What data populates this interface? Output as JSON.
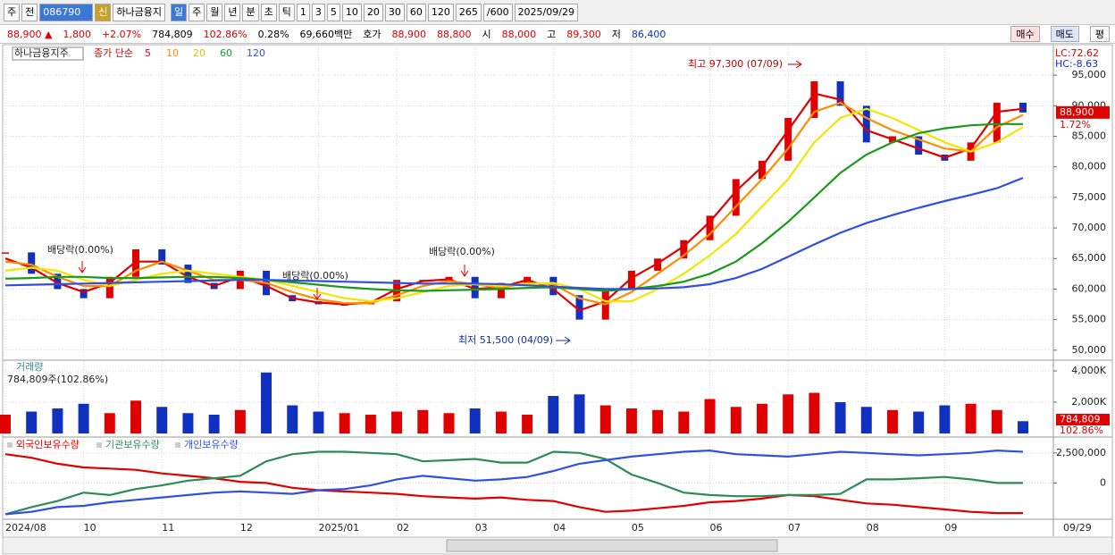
{
  "toolbar": [
    "주",
    "전",
    "086790",
    "신",
    "하나금융지",
    "일",
    "주",
    "월",
    "년",
    "분",
    "초",
    "틱",
    "1",
    "3",
    "5",
    "10",
    "20",
    "30",
    "60",
    "120",
    "265",
    "/600",
    "2025/09/29"
  ],
  "quote": [
    {
      "text": "88,900 ▲",
      "color": "#e00000"
    },
    {
      "text": "1,800",
      "color": "#e00000"
    },
    {
      "text": "+2.07%",
      "color": "#e00000"
    },
    {
      "text": "784,809",
      "color": "#000000"
    },
    {
      "text": "102.86%",
      "color": "#e00000"
    },
    {
      "text": "0.28%",
      "color": "#000000"
    },
    {
      "text": "69,660백만",
      "color": "#000000"
    },
    {
      "text": "호가",
      "color": "#000000"
    },
    {
      "text": "88,900",
      "color": "#e00000"
    },
    {
      "text": "88,800",
      "color": "#e00000"
    },
    {
      "text": "시",
      "color": "#000000"
    },
    {
      "text": "88,000",
      "color": "#e00000"
    },
    {
      "text": "고",
      "color": "#000000"
    },
    {
      "text": "89,300",
      "color": "#e00000"
    },
    {
      "text": "저",
      "color": "#000000"
    },
    {
      "text": "86,400",
      "color": "#1030c0"
    }
  ],
  "buttons": [
    "매수",
    "매도",
    "평"
  ],
  "chart_data": [
    {
      "type": "candlestick",
      "title": "하나금융지주",
      "subtitle": "종가 단순",
      "categories": [
        "2024/08",
        null,
        null,
        "10",
        null,
        null,
        "11",
        null,
        null,
        "12",
        null,
        null,
        "2025/01",
        null,
        null,
        "02",
        null,
        null,
        "03",
        null,
        null,
        "04",
        null,
        null,
        "05",
        null,
        null,
        "06",
        null,
        null,
        "07",
        null,
        null,
        "08",
        null,
        null,
        "09",
        null,
        null,
        null
      ],
      "last_date": "09/29",
      "close": [
        66000,
        62500,
        60000,
        58500,
        62000,
        66500,
        64000,
        61000,
        60000,
        63000,
        59000,
        58000,
        57500,
        57500,
        58000,
        61500,
        61500,
        62000,
        58500,
        61000,
        62000,
        59000,
        55000,
        60000,
        63000,
        65000,
        68000,
        72000,
        78000,
        81000,
        88000,
        94000,
        90000,
        84000,
        85000,
        82000,
        81000,
        84000,
        90500,
        88900
      ],
      "up_color": "#e00000",
      "down_color": "#1030c0",
      "series": [
        {
          "name": "5",
          "color": "#e00000",
          "values": [
            65000,
            63500,
            61000,
            59500,
            61000,
            64500,
            64500,
            62000,
            60500,
            62000,
            60500,
            58500,
            57800,
            57500,
            57800,
            60000,
            61300,
            61600,
            60000,
            60300,
            61500,
            60000,
            56500,
            58000,
            61800,
            64200,
            67000,
            71000,
            76000,
            80000,
            86000,
            92000,
            91000,
            86000,
            84500,
            83000,
            81500,
            83000,
            89000,
            89500
          ]
        },
        {
          "name": "10",
          "color": "#ff8c00",
          "values": [
            64500,
            64000,
            62000,
            60500,
            60500,
            63000,
            64500,
            63000,
            61500,
            61500,
            61000,
            59500,
            58300,
            57700,
            57700,
            59000,
            60500,
            61300,
            60800,
            60200,
            61000,
            60800,
            58500,
            57500,
            59500,
            62500,
            65500,
            69000,
            73500,
            78000,
            83000,
            89000,
            90500,
            88000,
            86000,
            84500,
            83000,
            82500,
            86500,
            88500
          ]
        },
        {
          "name": "20",
          "color": "#f2e600",
          "values": [
            63000,
            63500,
            63000,
            61500,
            60500,
            61500,
            62500,
            63000,
            62500,
            62000,
            61500,
            60500,
            59500,
            58500,
            58000,
            58500,
            59500,
            60500,
            60800,
            60500,
            60800,
            61000,
            60000,
            58000,
            58000,
            60000,
            62500,
            65500,
            69000,
            73500,
            78000,
            84000,
            88000,
            89500,
            88000,
            86000,
            84000,
            82500,
            84000,
            86500
          ]
        },
        {
          "name": "60",
          "color": "#1a9a1a",
          "values": [
            61700,
            61800,
            62000,
            62000,
            61800,
            61800,
            61900,
            62000,
            62000,
            61800,
            61500,
            61100,
            60700,
            60300,
            60000,
            59800,
            59700,
            59800,
            59900,
            60000,
            60200,
            60300,
            60000,
            59700,
            60000,
            60500,
            61200,
            62500,
            64500,
            67500,
            71000,
            75000,
            79000,
            82000,
            84000,
            85500,
            86300,
            86800,
            87000,
            87000
          ]
        },
        {
          "name": "120",
          "color": "#3050e0",
          "values": [
            60600,
            60700,
            60800,
            60900,
            61000,
            61100,
            61200,
            61300,
            61400,
            61500,
            61500,
            61400,
            61300,
            61200,
            61100,
            61000,
            60900,
            60900,
            60900,
            60800,
            60600,
            60400,
            60200,
            60000,
            60000,
            60100,
            60300,
            60800,
            61800,
            63300,
            65300,
            67300,
            69200,
            70800,
            72100,
            73300,
            74400,
            75400,
            76500,
            78200
          ]
        }
      ],
      "ylim": [
        48800,
        99700
      ],
      "yticks": [
        {
          "value": 50000,
          "label": "50,000"
        },
        {
          "value": 55000,
          "label": "55,000"
        },
        {
          "value": 60000,
          "label": "60,000"
        },
        {
          "value": 65000,
          "label": "65,000"
        },
        {
          "value": 70000,
          "label": "70,000"
        },
        {
          "value": 75000,
          "label": "75,000"
        },
        {
          "value": 80000,
          "label": "80,000"
        },
        {
          "value": 85000,
          "label": "85,000"
        },
        {
          "value": 90000,
          "label": "90,000"
        },
        {
          "value": 95000,
          "label": "95,000"
        }
      ],
      "grid": true,
      "annotations": [
        "최고 97,300 (07/09)",
        "최저 51,500 (04/09)",
        "배당락(0.00%)",
        "배당락(0.00%)",
        "배당락(0.00%)"
      ],
      "lc_label": "LC:72.62",
      "hc_label": "HC:-8.63",
      "last_label": {
        "value": 88900,
        "label": "88,900"
      },
      "change_label": "1.72%"
    },
    {
      "type": "bar",
      "title": "거래량",
      "subtitle": "784,809주(102.86%)",
      "values": [
        1200,
        1400,
        1600,
        1900,
        1300,
        2100,
        1700,
        1300,
        1200,
        1500,
        3900,
        1800,
        1400,
        1300,
        1200,
        1400,
        1500,
        1300,
        1600,
        1400,
        1200,
        2400,
        2500,
        1800,
        1600,
        1500,
        1400,
        2200,
        1700,
        1900,
        2500,
        2600,
        2000,
        1700,
        1500,
        1400,
        1800,
        1900,
        1500,
        784.809
      ],
      "ylim": [
        -170,
        4630
      ],
      "yticks": [
        {
          "value": 2000,
          "label": "2,000K"
        },
        {
          "value": 4000,
          "label": "4,000K"
        }
      ],
      "grid": true,
      "last_label": {
        "value": 784.809,
        "label": "784,809"
      },
      "ratio_label": "102.86%"
    },
    {
      "type": "line",
      "series": [
        {
          "name": "외국인보유수량",
          "color": "#e00000",
          "values": [
            2400000,
            2100000,
            1600000,
            1300000,
            1200000,
            1100000,
            800000,
            600000,
            400000,
            100000,
            0,
            -400000,
            -600000,
            -700000,
            -800000,
            -900000,
            -1100000,
            -1200000,
            -1300000,
            -1200000,
            -1400000,
            -1500000,
            -2000000,
            -2400000,
            -2300000,
            -2100000,
            -1900000,
            -1600000,
            -1500000,
            -1300000,
            -1000000,
            -1100000,
            -1400000,
            -1700000,
            -1800000,
            -2000000,
            -2200000,
            -2400000,
            -2500000,
            -2500000
          ]
        },
        {
          "name": "기관보유수량",
          "color": "#2e8b57",
          "values": [
            -2600000,
            -2000000,
            -1500000,
            -800000,
            -1000000,
            -500000,
            -200000,
            200000,
            400000,
            600000,
            1800000,
            2400000,
            2600000,
            2600000,
            2500000,
            2400000,
            1800000,
            1900000,
            2000000,
            1700000,
            1700000,
            2600000,
            2500000,
            2000000,
            700000,
            0,
            -800000,
            -1000000,
            -1100000,
            -1100000,
            -1000000,
            -1000000,
            -900000,
            300000,
            300000,
            400000,
            500000,
            300000,
            0,
            0
          ]
        },
        {
          "name": "개인보유수량",
          "color": "#3050e0",
          "values": [
            -2600000,
            -2400000,
            -2000000,
            -1900000,
            -1600000,
            -1400000,
            -1200000,
            -1000000,
            -800000,
            -700000,
            -800000,
            -900000,
            -600000,
            -500000,
            -200000,
            300000,
            600000,
            400000,
            200000,
            300000,
            500000,
            1000000,
            1600000,
            1900000,
            2200000,
            2400000,
            2600000,
            2700000,
            2400000,
            2300000,
            2200000,
            2400000,
            2600000,
            2500000,
            2400000,
            2300000,
            2400000,
            2500000,
            2700000,
            2600000
          ]
        }
      ],
      "ylim": [
        -2940000,
        3750000
      ],
      "yticks": [
        0,
        {
          "value": 2500000,
          "label": "2,500,000"
        }
      ],
      "grid": true
    }
  ]
}
